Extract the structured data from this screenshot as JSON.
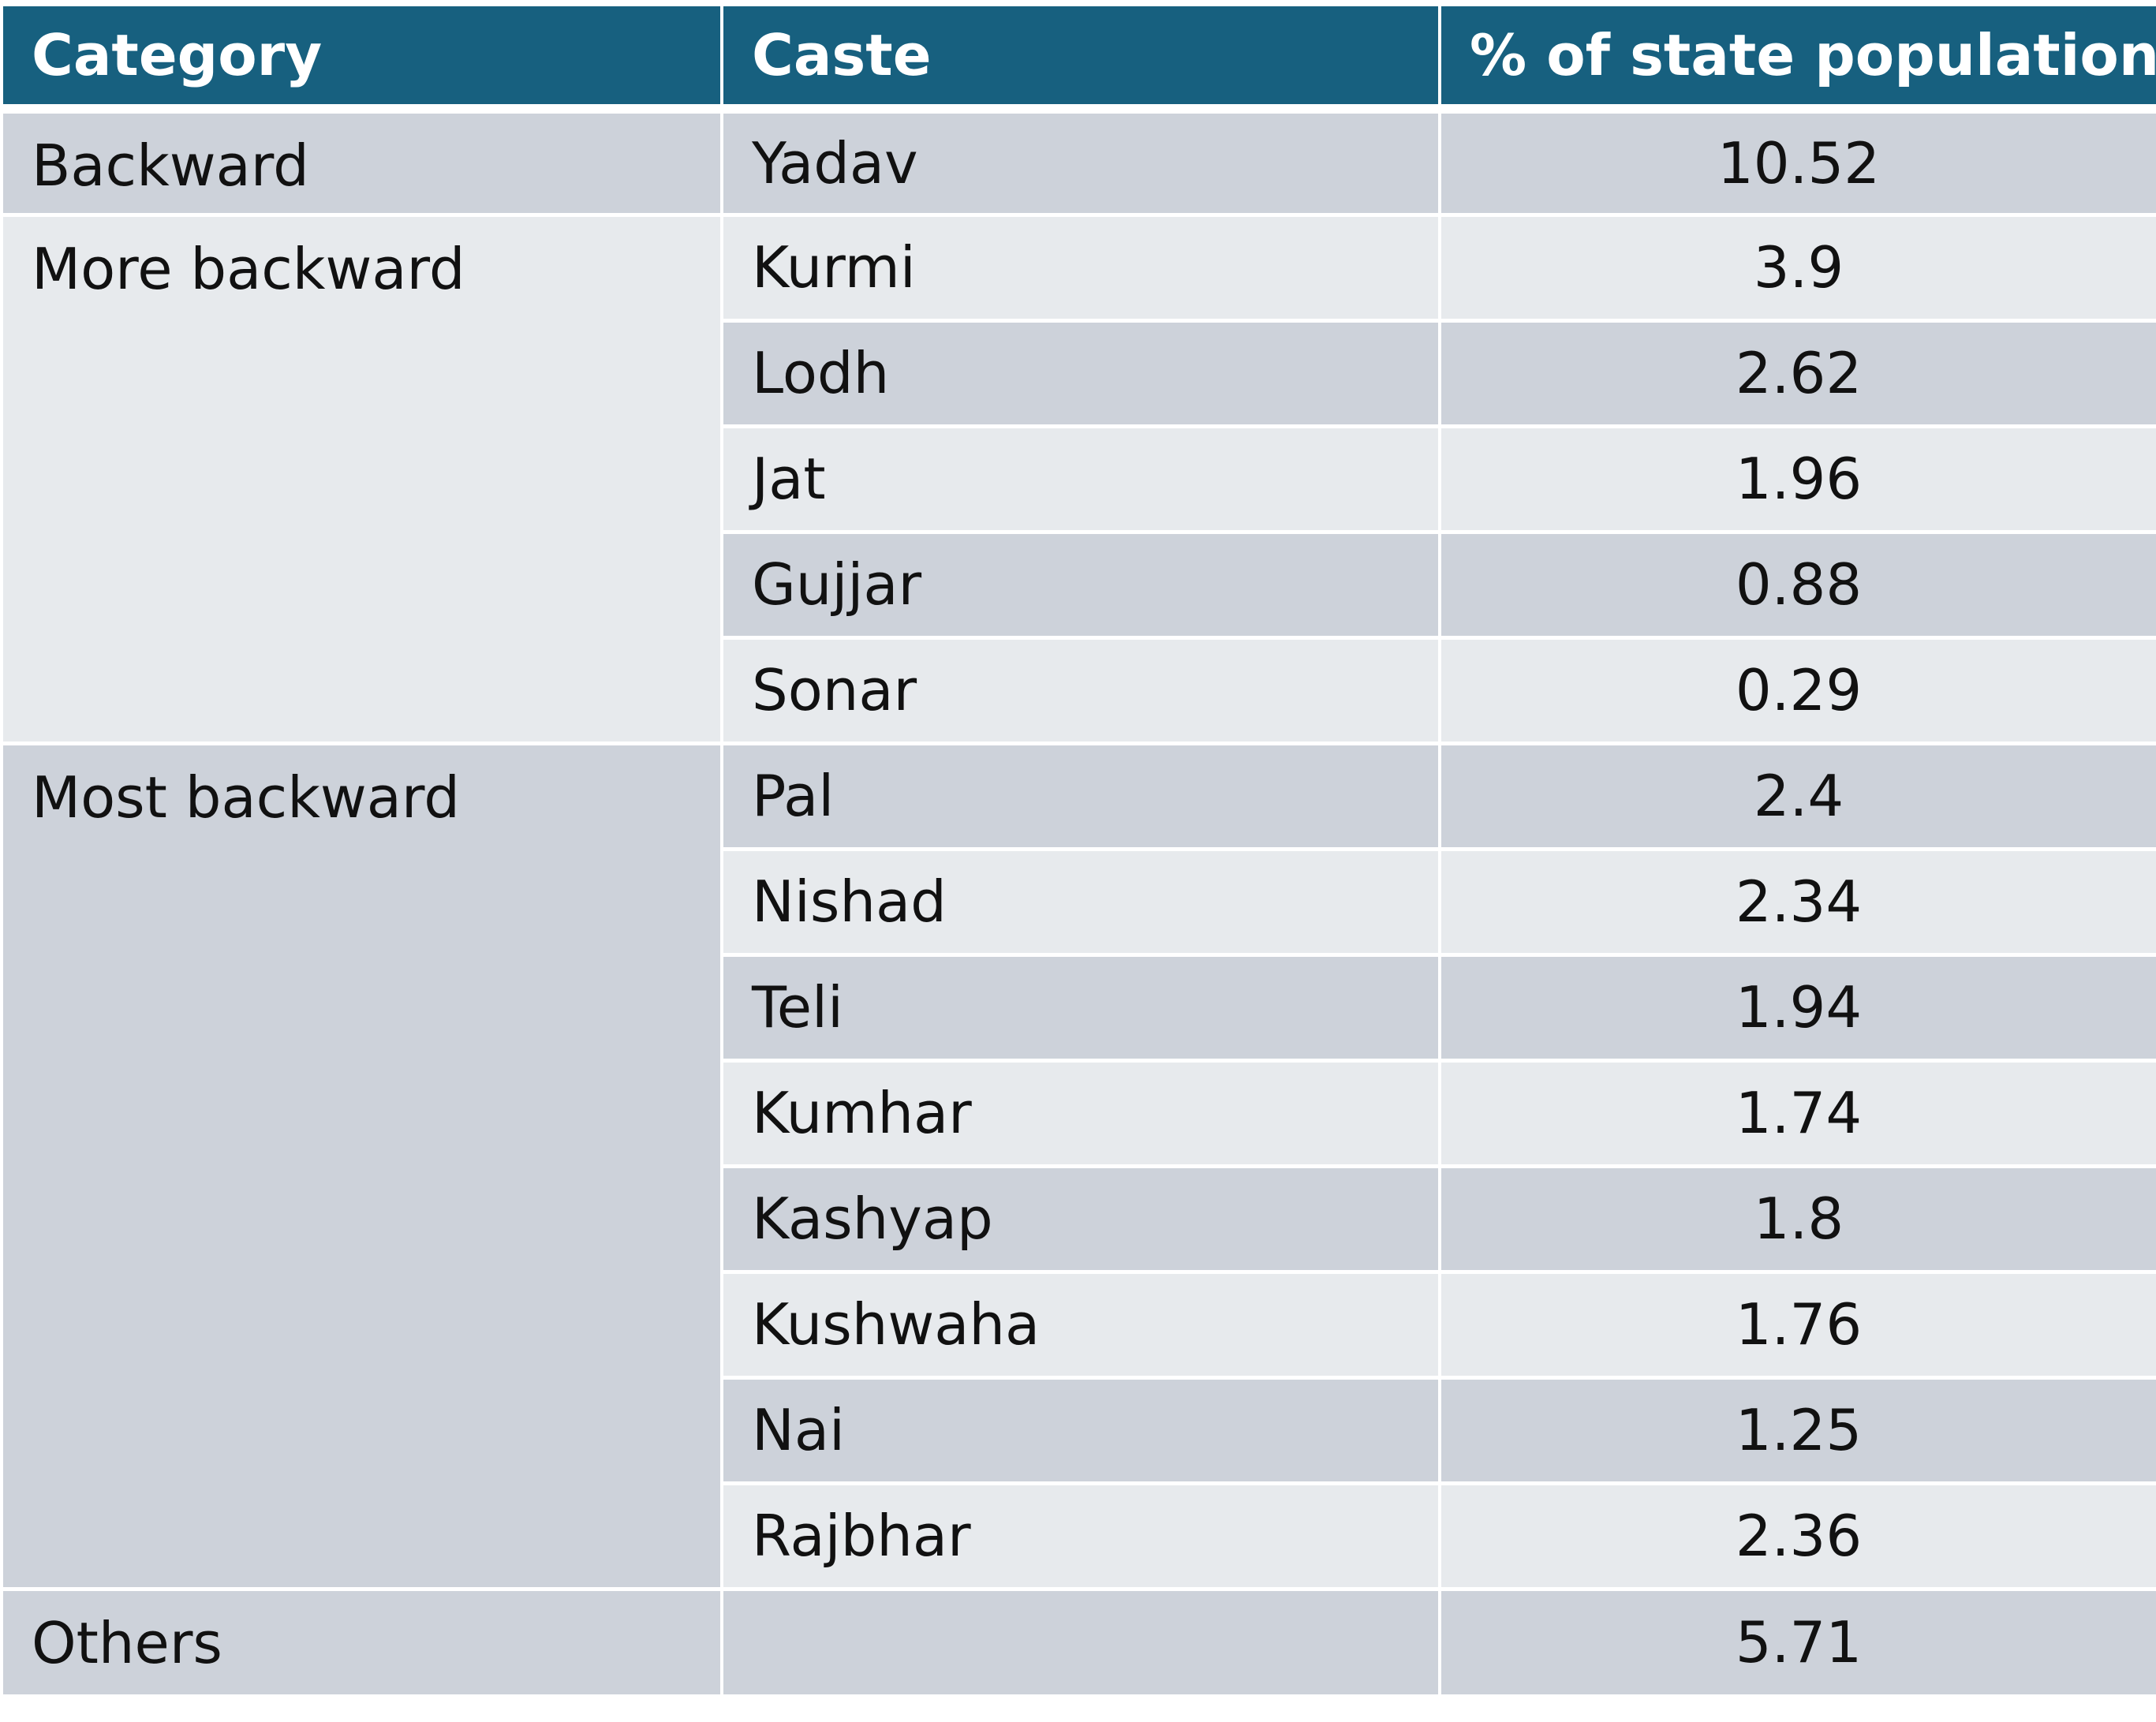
{
  "chart_data": {
    "type": "table",
    "columns": [
      "Category",
      "Caste",
      "% of state population"
    ],
    "groups": [
      {
        "category": "Backward",
        "rows": [
          {
            "caste": "Yadav",
            "pct": "10.52"
          }
        ]
      },
      {
        "category": "More backward",
        "rows": [
          {
            "caste": "Kurmi",
            "pct": "3.9"
          },
          {
            "caste": "Lodh",
            "pct": "2.62"
          },
          {
            "caste": "Jat",
            "pct": "1.96"
          },
          {
            "caste": "Gujjar",
            "pct": "0.88"
          },
          {
            "caste": "Sonar",
            "pct": "0.29"
          }
        ]
      },
      {
        "category": "Most backward",
        "rows": [
          {
            "caste": "Pal",
            "pct": "2.4"
          },
          {
            "caste": "Nishad",
            "pct": "2.34"
          },
          {
            "caste": "Teli",
            "pct": "1.94"
          },
          {
            "caste": "Kumhar",
            "pct": "1.74"
          },
          {
            "caste": "Kashyap",
            "pct": "1.8"
          },
          {
            "caste": "Kushwaha",
            "pct": "1.76"
          },
          {
            "caste": "Nai",
            "pct": "1.25"
          },
          {
            "caste": "Rajbhar",
            "pct": "2.36"
          }
        ]
      },
      {
        "category": "Others",
        "rows": [
          {
            "caste": "",
            "pct": "5.71"
          }
        ]
      }
    ]
  },
  "colors": {
    "header": "#17607f",
    "band_dark": "#cdd2da",
    "band_light": "#e7eaed"
  }
}
